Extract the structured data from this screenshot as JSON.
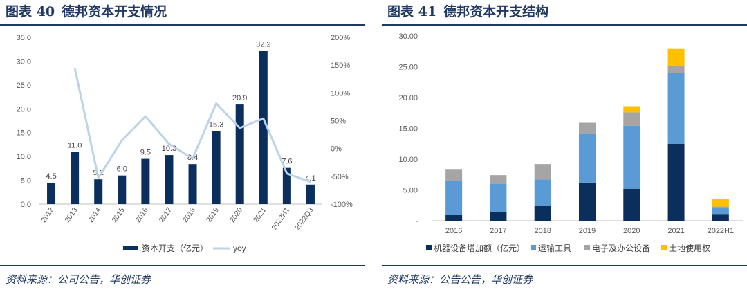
{
  "left_panel": {
    "title_num": "图表 40",
    "title_text": "德邦资本开支情况",
    "source": "资料来源：公司公告，华创证券"
  },
  "right_panel": {
    "title_num": "图表 41",
    "title_text": "德邦资本开支结构",
    "source": "资料来源：公告公告，华创证券"
  },
  "colors": {
    "navy": "#0b2f5c",
    "light_blue_line": "#bcd3e8",
    "medium_blue": "#5b9bd5",
    "gray": "#a5a5a5",
    "gold": "#ffc000",
    "title": "#1f3864",
    "axis_text": "#595959"
  },
  "chart_data": [
    {
      "type": "bar",
      "categories": [
        "2012",
        "2013",
        "2014",
        "2015",
        "2016",
        "2017",
        "2018",
        "2019",
        "2020",
        "2021",
        "2022H1",
        "2022Q3"
      ],
      "series": [
        {
          "name": "资本开支（亿元）",
          "kind": "bar",
          "axis": "left",
          "values": [
            4.5,
            11.0,
            5.2,
            6.0,
            9.5,
            10.3,
            8.4,
            15.3,
            20.9,
            32.2,
            7.6,
            4.1
          ],
          "labels": [
            "4.5",
            "11.0",
            "5.2",
            "6.0",
            "9.5",
            "10.3",
            "8.4",
            "15.3",
            "20.9",
            "32.2",
            "7.6",
            "4.1"
          ]
        },
        {
          "name": "yoy",
          "kind": "line",
          "axis": "right",
          "values": [
            null,
            145,
            -53,
            15,
            58,
            8,
            -18,
            81,
            37,
            54,
            -45,
            -60
          ]
        }
      ],
      "left_axis": {
        "ylim": [
          0,
          35
        ],
        "ticks": [
          "0.0",
          "5.0",
          "10.0",
          "15.0",
          "20.0",
          "25.0",
          "30.0",
          "35.0"
        ]
      },
      "right_axis": {
        "ylim": [
          -100,
          200
        ],
        "ticks": [
          "-100%",
          "-50%",
          "0%",
          "50%",
          "100%",
          "150%",
          "200%"
        ]
      },
      "legend": {
        "position": "bottom"
      },
      "grid": false
    },
    {
      "type": "bar",
      "stacked": true,
      "categories": [
        "2016",
        "2017",
        "2018",
        "2019",
        "2020",
        "2021",
        "2022H1"
      ],
      "series": [
        {
          "name": "机器设备增加额（亿元）",
          "values": [
            0.9,
            1.4,
            2.5,
            6.2,
            5.2,
            12.5,
            1.1
          ]
        },
        {
          "name": "运输工具",
          "values": [
            5.6,
            4.6,
            4.2,
            8.0,
            10.2,
            11.5,
            1.0
          ]
        },
        {
          "name": "电子及办公设备",
          "values": [
            1.9,
            1.4,
            2.5,
            1.7,
            2.2,
            1.1,
            0.2
          ]
        },
        {
          "name": "土地使用权",
          "values": [
            0.0,
            0.0,
            0.0,
            0.0,
            1.0,
            2.8,
            1.2
          ]
        }
      ],
      "y_axis": {
        "ylim": [
          0,
          30
        ],
        "ticks": [
          "-",
          "5.00",
          "10.00",
          "15.00",
          "20.00",
          "25.00",
          "30.00"
        ]
      },
      "legend": {
        "position": "bottom"
      },
      "grid": false
    }
  ]
}
